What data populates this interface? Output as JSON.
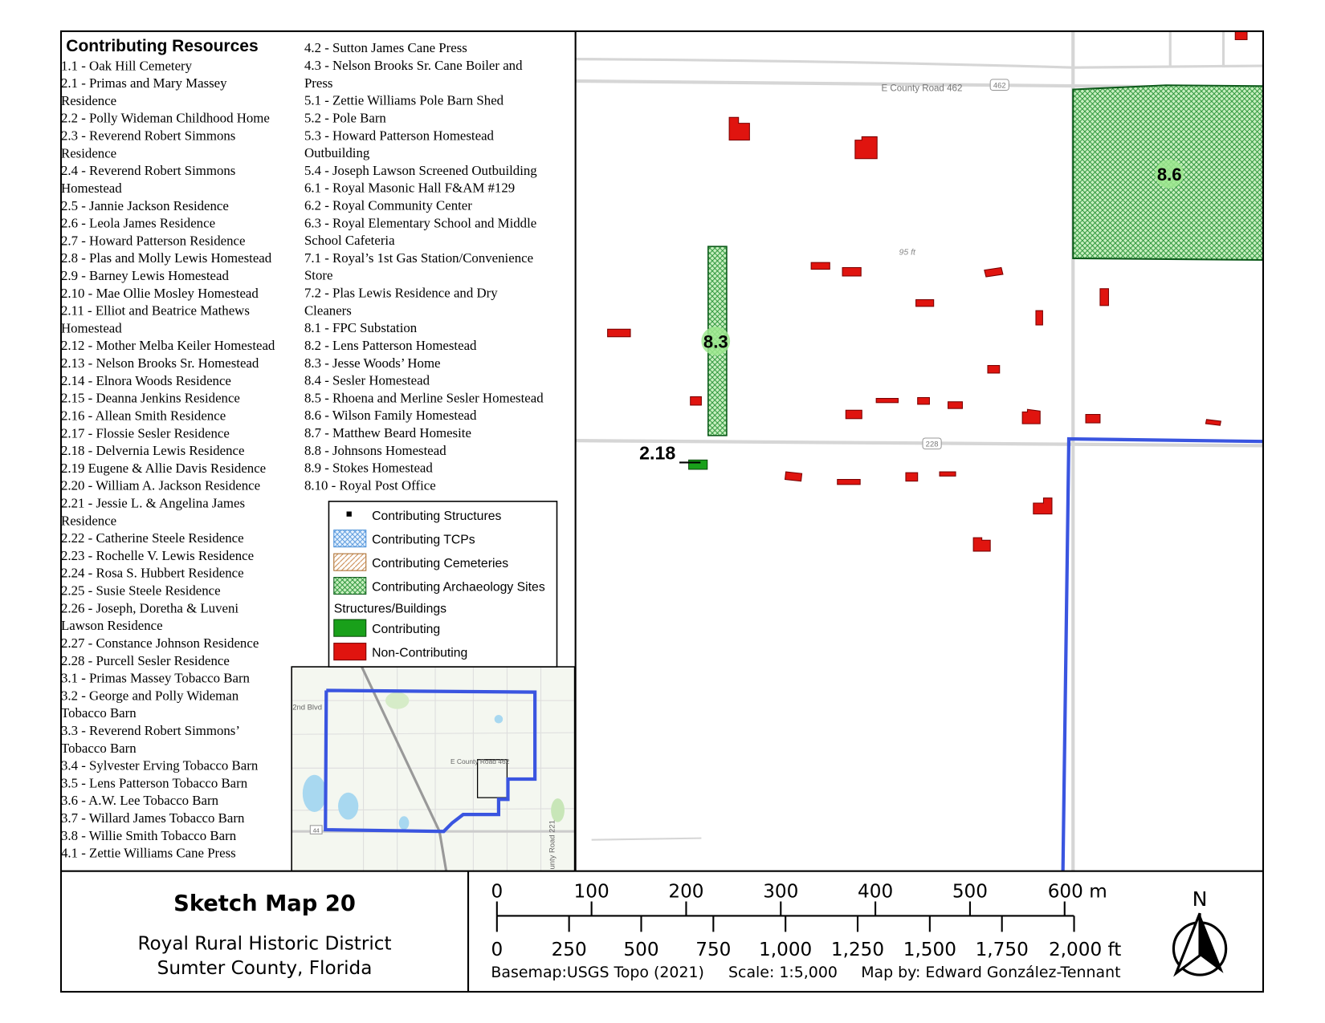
{
  "legend_list": {
    "heading": "Contributing Resources",
    "columns": [
      [
        {
          "lines": [
            "1.1 - Oak Hill Cemetery"
          ]
        },
        {
          "lines": [
            "2.1 - Primas and Mary Massey",
            "Residence"
          ]
        },
        {
          "lines": [
            "2.2 - Polly Wideman Childhood Home"
          ]
        },
        {
          "lines": [
            "2.3 - Reverend Robert Simmons",
            "Residence"
          ]
        },
        {
          "lines": [
            "2.4 - Reverend Robert Simmons",
            "Homestead"
          ]
        },
        {
          "lines": [
            "2.5 - Jannie Jackson Residence"
          ]
        },
        {
          "lines": [
            "2.6 - Leola James Residence"
          ]
        },
        {
          "lines": [
            "2.7 - Howard Patterson Residence"
          ]
        },
        {
          "lines": [
            "2.8 - Plas and Molly Lewis Homestead"
          ]
        },
        {
          "lines": [
            "2.9 - Barney Lewis Homestead"
          ]
        },
        {
          "lines": [
            "2.10 - Mae Ollie Mosley Homestead"
          ]
        },
        {
          "lines": [
            "2.11 - Elliot and Beatrice Mathews",
            "Homestead"
          ]
        },
        {
          "lines": [
            "2.12 - Mother Melba Keiler Homestead"
          ]
        },
        {
          "lines": [
            "2.13 - Nelson Brooks Sr. Homestead"
          ]
        },
        {
          "lines": [
            "2.14 - Elnora Woods Residence"
          ]
        },
        {
          "lines": [
            "2.15 - Deanna Jenkins Residence"
          ]
        },
        {
          "lines": [
            "2.16 - Allean Smith Residence"
          ]
        },
        {
          "lines": [
            "2.17 - Flossie Sesler Residence"
          ]
        },
        {
          "lines": [
            "2.18 - Delvernia Lewis Residence"
          ]
        },
        {
          "lines": [
            "2.19 Eugene & Allie Davis Residence"
          ]
        },
        {
          "lines": [
            "2.20 - William A. Jackson Residence"
          ]
        },
        {
          "lines": [
            "2.21 - Jessie L. & Angelina James",
            "Residence"
          ]
        },
        {
          "lines": [
            "2.22 - Catherine Steele Residence"
          ]
        },
        {
          "lines": [
            "2.23 -  Rochelle V. Lewis Residence"
          ]
        },
        {
          "lines": [
            "2.24 - Rosa S. Hubbert Residence"
          ]
        },
        {
          "lines": [
            "2.25 - Susie Steele Residence"
          ]
        },
        {
          "lines": [
            "2.26 - Joseph, Doretha & Luveni",
            "Lawson Residence"
          ]
        },
        {
          "lines": [
            "2.27 - Constance Johnson Residence"
          ]
        },
        {
          "lines": [
            "2.28 - Purcell Sesler Residence"
          ]
        },
        {
          "lines": [
            "3.1 - Primas Massey Tobacco Barn"
          ]
        },
        {
          "lines": [
            "3.2 - George and Polly Wideman",
            "Tobacco Barn"
          ]
        },
        {
          "lines": [
            "3.3 - Reverend Robert Simmons’",
            "Tobacco Barn"
          ]
        },
        {
          "lines": [
            "3.4 - Sylvester Erving Tobacco Barn"
          ]
        },
        {
          "lines": [
            "3.5 - Lens Patterson Tobacco Barn"
          ]
        },
        {
          "lines": [
            "3.6 - A.W. Lee Tobacco Barn"
          ]
        },
        {
          "lines": [
            "3.7 - Willard James Tobacco Barn"
          ]
        },
        {
          "lines": [
            "3.8 - Willie Smith Tobacco Barn"
          ]
        },
        {
          "lines": [
            "4.1 - Zettie Williams Cane Press"
          ]
        }
      ],
      [
        {
          "lines": [
            "4.2 - Sutton James Cane Press"
          ]
        },
        {
          "lines": [
            "4.3 - Nelson Brooks Sr. Cane Boiler and",
            "Press"
          ]
        },
        {
          "lines": [
            "5.1 - Zettie Williams Pole Barn Shed"
          ]
        },
        {
          "lines": [
            "5.2 - Pole Barn"
          ]
        },
        {
          "lines": [
            "5.3 - Howard Patterson Homestead",
            "Outbuilding"
          ]
        },
        {
          "lines": [
            "5.4 - Joseph Lawson Screened Outbuilding"
          ]
        },
        {
          "lines": [
            "6.1 - Royal Masonic Hall F&AM #129"
          ]
        },
        {
          "lines": [
            "6.2 - Royal Community Center"
          ]
        },
        {
          "lines": [
            "6.3 - Royal Elementary School and Middle",
            "School Cafeteria"
          ]
        },
        {
          "lines": [
            "7.1 - Royal’s 1st Gas Station/Convenience",
            "Store"
          ]
        },
        {
          "lines": [
            "7.2 - Plas Lewis Residence and Dry",
            "Cleaners"
          ]
        },
        {
          "lines": [
            "8.1 - FPC Substation"
          ]
        },
        {
          "lines": [
            "8.2 - Lens Patterson Homestead"
          ]
        },
        {
          "lines": [
            "8.3 - Jesse Woods’ Home"
          ]
        },
        {
          "lines": [
            "8.4 - Sesler Homestead"
          ]
        },
        {
          "lines": [
            "8.5 - Rhoena and Merline Sesler Homestead"
          ]
        },
        {
          "lines": [
            "8.6 - Wilson Family Homestead"
          ]
        },
        {
          "lines": [
            "8.7 - Matthew Beard Homesite"
          ]
        },
        {
          "lines": [
            "8.8 - Johnsons Homestead"
          ]
        },
        {
          "lines": [
            "8.9 - Stokes Homestead"
          ]
        },
        {
          "lines": [
            "8.10 - Royal Post Office"
          ]
        }
      ]
    ]
  },
  "legend_box": {
    "items": [
      "Contributing Structures",
      "Contributing TCPs",
      "Contributing Cemeteries",
      "Contributing Archaeology Sites"
    ],
    "group_title": "Structures/Buildings",
    "group_items": [
      "Contributing",
      "Non-Contributing"
    ]
  },
  "map": {
    "road_label": "E County Road 462",
    "road_shield_1": "462",
    "road_shield_2": "228",
    "elevation": "95 ft",
    "site_labels": [
      "8.6",
      "8.3",
      "2.18"
    ]
  },
  "inset": {
    "labels": [
      "2nd Blvd",
      "E County Road 462",
      "44",
      "unty Road 221"
    ]
  },
  "footer": {
    "title": "Sketch Map 20",
    "subtitle_lines": [
      "Royal Rural Historic District",
      "Sumter County, Florida"
    ],
    "scale_m": [
      "0",
      "100",
      "200",
      "300",
      "400",
      "500",
      "600 m"
    ],
    "scale_ft": [
      "0",
      "250",
      "500",
      "750",
      "1,000",
      "1,250",
      "1,500",
      "1,750",
      "2,000 ft"
    ],
    "basemap": "Basemap:USGS Topo (2021)",
    "scale": "Scale: 1:5,000",
    "author": "Map by: Edward González-Tennant",
    "north": "N"
  }
}
